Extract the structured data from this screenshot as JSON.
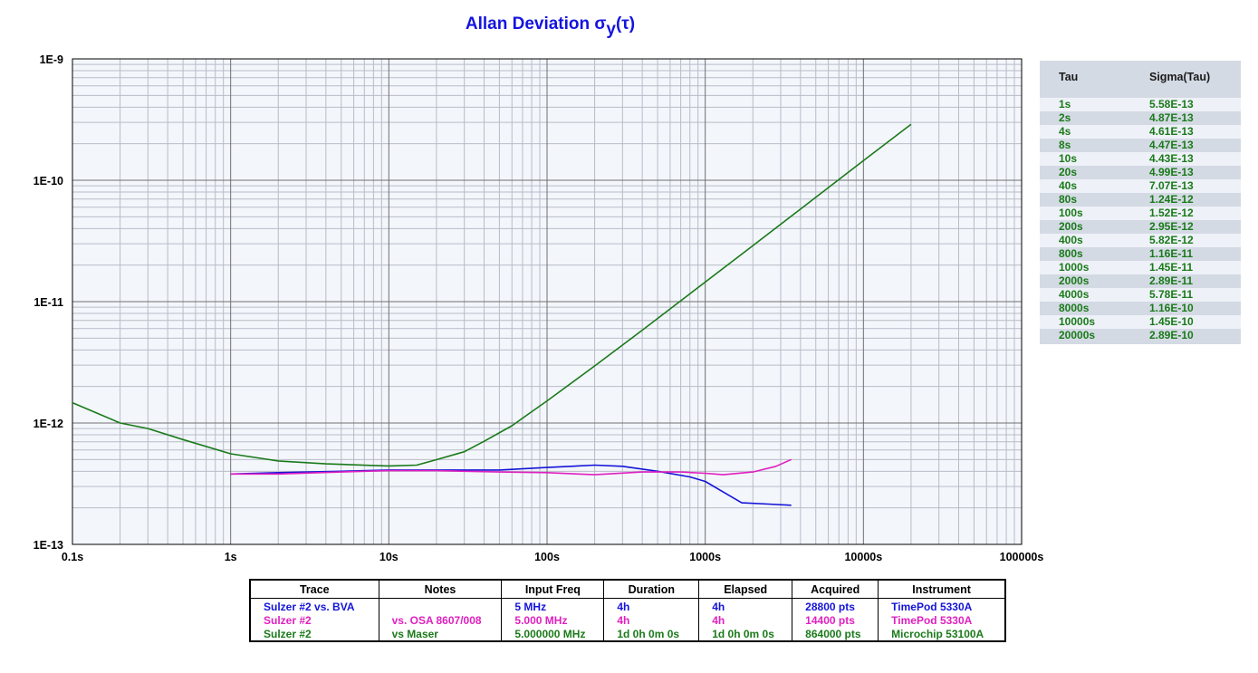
{
  "chart_data": {
    "type": "line",
    "title_main": "Allan Deviation σ",
    "title_sub": "y",
    "title_tail": "(τ)",
    "log_x": true,
    "log_y": true,
    "xlim": [
      0.1,
      100000
    ],
    "ylim": [
      1e-13,
      1e-09
    ],
    "grid": true,
    "x_tick_labels": [
      "0.1s",
      "1s",
      "10s",
      "100s",
      "1000s",
      "10000s",
      "100000s"
    ],
    "y_tick_labels": [
      "1E-9",
      "1E-10",
      "1E-11",
      "1E-12",
      "1E-13"
    ],
    "series": [
      {
        "color": "#1a7a1a",
        "x": [
          0.1,
          0.2,
          0.3,
          0.5,
          1,
          2,
          4,
          8,
          10,
          15,
          20,
          30,
          40,
          60,
          80,
          100,
          200,
          400,
          800,
          1000,
          2000,
          4000,
          8000,
          10000,
          20000
        ],
        "y": [
          1.47e-12,
          1e-12,
          9e-13,
          7.3e-13,
          5.58e-13,
          4.87e-13,
          4.61e-13,
          4.47e-13,
          4.43e-13,
          4.5e-13,
          4.99e-13,
          5.8e-13,
          7.07e-13,
          9.5e-13,
          1.24e-12,
          1.52e-12,
          2.95e-12,
          5.82e-12,
          1.16e-11,
          1.45e-11,
          2.89e-11,
          5.78e-11,
          1.16e-10,
          1.45e-10,
          2.89e-10
        ]
      },
      {
        "color": "#1414d8",
        "x": [
          1,
          2,
          5,
          10,
          20,
          50,
          100,
          200,
          300,
          500,
          800,
          1000,
          1300,
          1700,
          2500,
          3500
        ],
        "y": [
          3.8e-13,
          3.9e-13,
          4e-13,
          4.1e-13,
          4.1e-13,
          4.1e-13,
          4.3e-13,
          4.5e-13,
          4.4e-13,
          4e-13,
          3.6e-13,
          3.3e-13,
          2.7e-13,
          2.2e-13,
          2.15e-13,
          2.1e-13
        ]
      },
      {
        "color": "#e020c0",
        "x": [
          1,
          2,
          5,
          10,
          20,
          50,
          100,
          200,
          400,
          700,
          1000,
          1300,
          2000,
          2800,
          3500
        ],
        "y": [
          3.8e-13,
          3.8e-13,
          3.95e-13,
          4.05e-13,
          4.05e-13,
          3.95e-13,
          3.9e-13,
          3.75e-13,
          3.95e-13,
          3.95e-13,
          3.85e-13,
          3.75e-13,
          3.95e-13,
          4.4e-13,
          5e-13
        ]
      }
    ]
  },
  "tau_table": {
    "header_tau": "Tau",
    "header_sigma": "Sigma(Tau)",
    "rows": [
      {
        "tau": "1s",
        "sigma": "5.58E-13"
      },
      {
        "tau": "2s",
        "sigma": "4.87E-13"
      },
      {
        "tau": "4s",
        "sigma": "4.61E-13"
      },
      {
        "tau": "8s",
        "sigma": "4.47E-13"
      },
      {
        "tau": "10s",
        "sigma": "4.43E-13"
      },
      {
        "tau": "20s",
        "sigma": "4.99E-13"
      },
      {
        "tau": "40s",
        "sigma": "7.07E-13"
      },
      {
        "tau": "80s",
        "sigma": "1.24E-12"
      },
      {
        "tau": "100s",
        "sigma": "1.52E-12"
      },
      {
        "tau": "200s",
        "sigma": "2.95E-12"
      },
      {
        "tau": "400s",
        "sigma": "5.82E-12"
      },
      {
        "tau": "800s",
        "sigma": "1.16E-11"
      },
      {
        "tau": "1000s",
        "sigma": "1.45E-11"
      },
      {
        "tau": "2000s",
        "sigma": "2.89E-11"
      },
      {
        "tau": "4000s",
        "sigma": "5.78E-11"
      },
      {
        "tau": "8000s",
        "sigma": "1.16E-10"
      },
      {
        "tau": "10000s",
        "sigma": "1.45E-10"
      },
      {
        "tau": "20000s",
        "sigma": "2.89E-10"
      }
    ]
  },
  "legend": {
    "headers": [
      "Trace",
      "Notes",
      "Input Freq",
      "Duration",
      "Elapsed",
      "Acquired",
      "Instrument"
    ],
    "rows": [
      {
        "color": "#1414d8",
        "cells": [
          "Sulzer #2 vs. BVA",
          "",
          "5 MHz",
          "4h",
          "4h",
          "28800 pts",
          "TimePod 5330A"
        ]
      },
      {
        "color": "#e020c0",
        "cells": [
          "Sulzer #2",
          "vs. OSA 8607/008",
          "5.000 MHz",
          "4h",
          "4h",
          "14400 pts",
          "TimePod 5330A"
        ]
      },
      {
        "color": "#1a7a1a",
        "cells": [
          "Sulzer #2",
          "vs Maser",
          "5.000000 MHz",
          "1d 0h 0m 0s",
          "1d 0h 0m 0s",
          "864000 pts",
          "Microchip 53100A"
        ]
      }
    ]
  }
}
